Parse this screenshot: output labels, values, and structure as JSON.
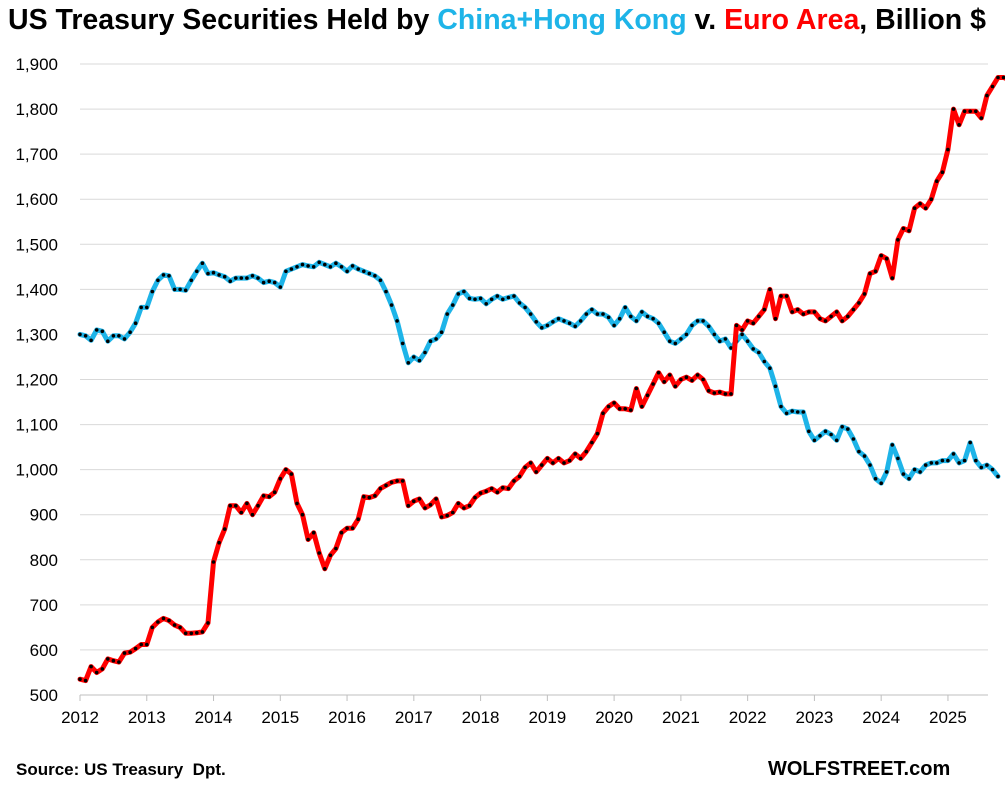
{
  "title": {
    "part1": "US Treasury Securities Held by ",
    "part2": "China+Hong Kong",
    "part3": " v. ",
    "part4": "Euro Area",
    "part5": ", Billion $"
  },
  "colors": {
    "china_hk": "#1EB4E8",
    "euro_area": "#FF0000",
    "marker": "#000000",
    "grid": "#D9D9D9"
  },
  "source": "Source: US Treasury  Dpt.",
  "brand": "WOLFSTREET.com",
  "chart_data": {
    "type": "line",
    "title": "US Treasury Securities Held by China+Hong Kong v. Euro Area, Billion $",
    "xlabel": "",
    "ylabel": "",
    "x_start": "2012-01",
    "x_step": "1 month",
    "xlim": [
      2012,
      2025.6
    ],
    "ylim": [
      500,
      1900
    ],
    "y_ticks": [
      500,
      600,
      700,
      800,
      900,
      1000,
      1100,
      1200,
      1300,
      1400,
      1500,
      1600,
      1700,
      1800,
      1900
    ],
    "y_tick_labels": [
      "500",
      "600",
      "700",
      "800",
      "900",
      "1,000",
      "1,100",
      "1,200",
      "1,300",
      "1,400",
      "1,500",
      "1,600",
      "1,700",
      "1,800",
      "1,900"
    ],
    "x_tick_labels": [
      "2012",
      "2013",
      "2014",
      "2015",
      "2016",
      "2017",
      "2018",
      "2019",
      "2020",
      "2021",
      "2022",
      "2023",
      "2024",
      "2025"
    ],
    "grid": "horizontal",
    "legend": "none (series named in title)",
    "series": [
      {
        "name": "China+Hong Kong",
        "values": [
          1300,
          1297,
          1287,
          1310,
          1307,
          1285,
          1297,
          1297,
          1290,
          1305,
          1325,
          1360,
          1360,
          1395,
          1420,
          1432,
          1430,
          1400,
          1400,
          1398,
          1420,
          1440,
          1458,
          1435,
          1437,
          1432,
          1428,
          1418,
          1425,
          1425,
          1425,
          1430,
          1425,
          1415,
          1418,
          1415,
          1405,
          1440,
          1445,
          1450,
          1455,
          1452,
          1450,
          1460,
          1455,
          1450,
          1458,
          1450,
          1440,
          1452,
          1445,
          1440,
          1435,
          1430,
          1420,
          1395,
          1365,
          1330,
          1280,
          1237,
          1250,
          1242,
          1260,
          1285,
          1290,
          1305,
          1345,
          1365,
          1390,
          1395,
          1380,
          1378,
          1380,
          1368,
          1378,
          1385,
          1378,
          1382,
          1385,
          1370,
          1360,
          1345,
          1328,
          1315,
          1320,
          1328,
          1335,
          1330,
          1325,
          1318,
          1330,
          1345,
          1355,
          1345,
          1345,
          1338,
          1320,
          1335,
          1360,
          1340,
          1330,
          1350,
          1340,
          1335,
          1325,
          1305,
          1285,
          1280,
          1290,
          1300,
          1320,
          1330,
          1330,
          1318,
          1300,
          1285,
          1290,
          1270,
          1285,
          1300,
          1285,
          1268,
          1260,
          1240,
          1225,
          1185,
          1140,
          1125,
          1130,
          1128,
          1128,
          1085,
          1065,
          1075,
          1085,
          1078,
          1065,
          1095,
          1090,
          1068,
          1040,
          1030,
          1010,
          980,
          970,
          995,
          1055,
          1025,
          990,
          980,
          1000,
          995,
          1010,
          1015,
          1015,
          1020,
          1020,
          1035,
          1015,
          1020,
          1060,
          1020,
          1005,
          1010,
          1000,
          985
        ]
      },
      {
        "name": "Euro Area",
        "values": [
          535,
          532,
          563,
          550,
          558,
          580,
          576,
          573,
          593,
          595,
          603,
          612,
          612,
          650,
          662,
          670,
          665,
          655,
          650,
          637,
          637,
          638,
          640,
          660,
          795,
          838,
          868,
          920,
          920,
          905,
          925,
          900,
          920,
          942,
          940,
          950,
          980,
          1000,
          990,
          925,
          900,
          845,
          860,
          815,
          780,
          810,
          825,
          860,
          870,
          870,
          890,
          940,
          938,
          942,
          958,
          965,
          972,
          975,
          975,
          920,
          930,
          935,
          915,
          922,
          935,
          895,
          898,
          905,
          925,
          915,
          920,
          938,
          948,
          952,
          958,
          950,
          960,
          958,
          975,
          985,
          1005,
          1015,
          995,
          1010,
          1025,
          1015,
          1025,
          1015,
          1020,
          1035,
          1025,
          1040,
          1060,
          1080,
          1125,
          1140,
          1148,
          1135,
          1135,
          1132,
          1180,
          1140,
          1165,
          1190,
          1215,
          1195,
          1210,
          1185,
          1200,
          1205,
          1198,
          1210,
          1200,
          1175,
          1170,
          1172,
          1168,
          1168,
          1320,
          1310,
          1330,
          1325,
          1340,
          1355,
          1400,
          1335,
          1385,
          1385,
          1350,
          1355,
          1345,
          1350,
          1350,
          1335,
          1330,
          1340,
          1350,
          1330,
          1340,
          1355,
          1370,
          1390,
          1435,
          1440,
          1475,
          1468,
          1425,
          1510,
          1535,
          1530,
          1580,
          1590,
          1580,
          1600,
          1640,
          1660,
          1710,
          1800,
          1765,
          1795,
          1795,
          1795,
          1780,
          1830,
          1850,
          1870,
          1870,
          1865,
          1910
        ]
      }
    ]
  }
}
